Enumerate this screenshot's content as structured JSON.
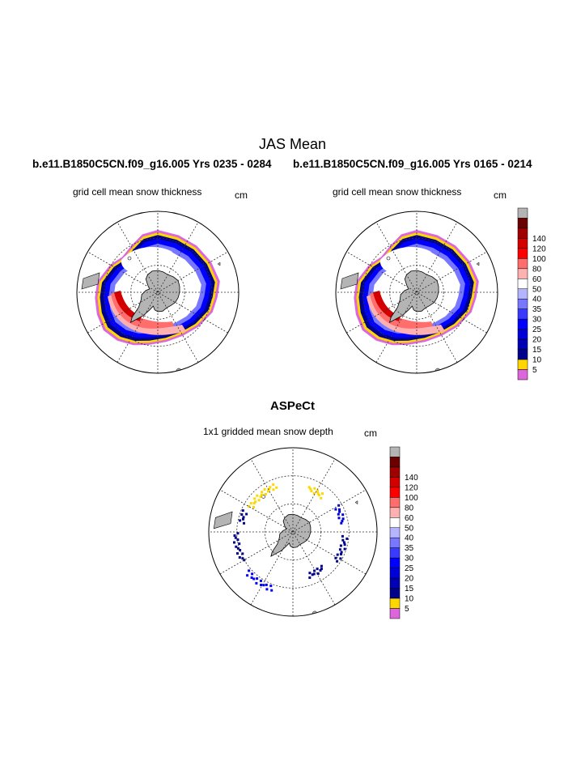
{
  "figure": {
    "main_title": "JAS Mean",
    "run_left": "b.e11.B1850C5CN.f09_g16.005  Yrs 0235 - 0284",
    "run_right": "b.e11.B1850C5CN.f09_g16.005  Yrs 0165 - 0214",
    "panel_left": {
      "title": "grid cell mean snow thickness",
      "units": "cm"
    },
    "panel_right": {
      "title": "grid cell mean snow thickness",
      "units": "cm"
    },
    "aspect": {
      "title": "ASPeCt",
      "subtitle": "1x1 gridded mean snow depth",
      "units": "cm"
    }
  },
  "chart_data": {
    "type": "heatmap",
    "projection": "south polar stereographic",
    "variable": "snow depth",
    "units": "cm",
    "colorbar": {
      "levels": [
        5,
        10,
        15,
        20,
        25,
        30,
        35,
        40,
        50,
        60,
        80,
        100,
        120,
        140
      ],
      "colors": [
        "#dd66dd",
        "#ffd700",
        "#00008b",
        "#0000b4",
        "#0000d9",
        "#0000ff",
        "#3a3aff",
        "#7777ff",
        "#b4b4ff",
        "#ffffff",
        "#ffb0b0",
        "#ff6d6d",
        "#ff0000",
        "#d40000",
        "#a00000",
        "#6a0000",
        "#b4b4b4"
      ],
      "land_color": "#b4b4b4"
    },
    "panels": [
      {
        "title": "grid cell mean snow thickness",
        "run": "b.e11.B1850C5CN.f09_g16.005",
        "years": "0235 - 0284"
      },
      {
        "title": "grid cell mean snow thickness",
        "run": "b.e11.B1850C5CN.f09_g16.005",
        "years": "0165 - 0214"
      },
      {
        "title": "1x1 gridded mean snow depth",
        "source": "ASPeCt"
      }
    ]
  }
}
